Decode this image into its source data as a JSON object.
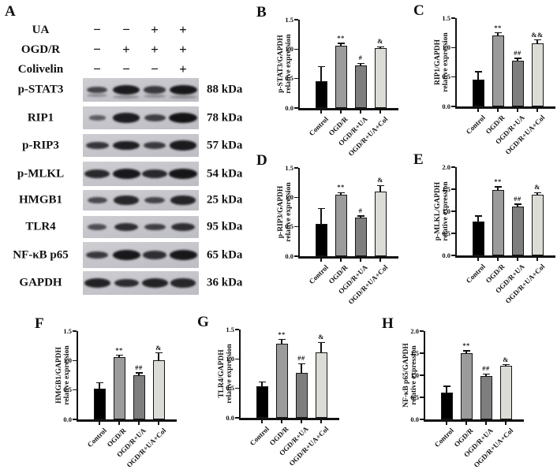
{
  "figure": {
    "bar_colors": [
      "#000000",
      "#9b9b9b",
      "#7e7e7e",
      "#dcdcd7"
    ],
    "groups": [
      "Control",
      "OGD/R",
      "OGD/R+UA",
      "OGD/R+UA+Col"
    ],
    "panel_a": {
      "letter": "A",
      "treatments": [
        {
          "label": "UA",
          "symbols": [
            "−",
            "−",
            "+",
            "+"
          ]
        },
        {
          "label": "OGD/R",
          "symbols": [
            "−",
            "+",
            "+",
            "+"
          ]
        },
        {
          "label": "Colivelin",
          "symbols": [
            "−",
            "−",
            "−",
            "+"
          ]
        }
      ],
      "blot_rows": [
        {
          "protein": "p-STAT3",
          "mw": "88 kDa",
          "band_intensities": [
            0.5,
            0.92,
            0.6,
            0.95
          ],
          "double_band": true
        },
        {
          "protein": "RIP1",
          "mw": "78 kDa",
          "band_intensities": [
            0.25,
            0.9,
            0.55,
            1.0
          ],
          "double_band": false
        },
        {
          "protein": "p-RIP3",
          "mw": "57 kDa",
          "band_intensities": [
            0.65,
            0.88,
            0.6,
            0.92
          ],
          "double_band": false
        },
        {
          "protein": "p-MLKL",
          "mw": "54 kDa",
          "band_intensities": [
            0.78,
            0.95,
            0.78,
            0.97
          ],
          "double_band": false
        },
        {
          "protein": "HMGB1",
          "mw": "25 kDa",
          "band_intensities": [
            0.45,
            0.8,
            0.5,
            0.82
          ],
          "double_band": false
        },
        {
          "protein": "TLR4",
          "mw": "95 kDa",
          "band_intensities": [
            0.4,
            0.72,
            0.55,
            0.72
          ],
          "double_band": false
        },
        {
          "protein": "NF-κB p65",
          "mw": "65 kDa",
          "band_intensities": [
            0.62,
            0.95,
            0.72,
            0.95
          ],
          "double_band": false
        },
        {
          "protein": "GAPDH",
          "mw": "36 kDa",
          "band_intensities": [
            0.85,
            0.75,
            0.85,
            0.8
          ],
          "double_band": false
        }
      ]
    }
  },
  "chart_data": [
    {
      "id": "B",
      "letter": "B",
      "type": "bar",
      "ylabel_line1": "p-STAT3/GAPDH",
      "ylabel_line2": "relative expression",
      "categories": [
        "Control",
        "OGD/R",
        "OGD/R+UA",
        "OGD/R+UA+Col"
      ],
      "values": [
        0.46,
        1.06,
        0.72,
        1.02
      ],
      "errors": [
        0.24,
        0.04,
        0.04,
        0.02
      ],
      "sig": [
        "",
        "**",
        "#",
        "&"
      ],
      "ylim": [
        0,
        1.5
      ],
      "yticks": [
        0,
        0.5,
        1.0,
        1.5
      ]
    },
    {
      "id": "C",
      "letter": "C",
      "type": "bar",
      "ylabel_line1": "RIP1/GAPDH",
      "ylabel_line2": "relative expression",
      "categories": [
        "Control",
        "OGD/R",
        "OGD/R+UA",
        "OGD/R+UA+Col"
      ],
      "values": [
        0.46,
        1.2,
        0.78,
        1.07
      ],
      "errors": [
        0.13,
        0.05,
        0.04,
        0.06
      ],
      "sig": [
        "",
        "**",
        "##",
        "&&"
      ],
      "ylim": [
        0,
        1.5
      ],
      "yticks": [
        0,
        0.5,
        1.0,
        1.5
      ]
    },
    {
      "id": "D",
      "letter": "D",
      "type": "bar",
      "ylabel_line1": "p-RIP3/GAPDH",
      "ylabel_line2": "relative expression",
      "categories": [
        "Control",
        "OGD/R",
        "OGD/R+UA",
        "OGD/R+UA+Col"
      ],
      "values": [
        0.55,
        1.05,
        0.66,
        1.1
      ],
      "errors": [
        0.26,
        0.03,
        0.02,
        0.1
      ],
      "sig": [
        "",
        "**",
        "#",
        "&"
      ],
      "ylim": [
        0,
        1.5
      ],
      "yticks": [
        0,
        0.5,
        1.0,
        1.5
      ]
    },
    {
      "id": "E",
      "letter": "E",
      "type": "bar",
      "ylabel_line1": "p-MLKL/GAPDH",
      "ylabel_line2": "relative expression",
      "categories": [
        "Control",
        "OGD/R",
        "OGD/R+UA",
        "OGD/R+UA+Col"
      ],
      "values": [
        0.76,
        1.48,
        1.1,
        1.37
      ],
      "errors": [
        0.13,
        0.07,
        0.06,
        0.05
      ],
      "sig": [
        "",
        "**",
        "##",
        "&"
      ],
      "ylim": [
        0,
        2.0
      ],
      "yticks": [
        0,
        0.5,
        1.0,
        1.5,
        2.0
      ]
    },
    {
      "id": "F",
      "letter": "F",
      "type": "bar",
      "ylabel_line1": "HMGB1/GAPDH",
      "ylabel_line2": "relative expression",
      "categories": [
        "Control",
        "OGD/R",
        "OGD/R+UA",
        "OGD/R+UA+Col"
      ],
      "values": [
        0.52,
        1.06,
        0.75,
        1.0
      ],
      "errors": [
        0.1,
        0.03,
        0.04,
        0.13
      ],
      "sig": [
        "",
        "**",
        "##",
        "&"
      ],
      "ylim": [
        0,
        1.5
      ],
      "yticks": [
        0,
        0.5,
        1.0,
        1.5
      ]
    },
    {
      "id": "G",
      "letter": "G",
      "type": "bar",
      "ylabel_line1": "TLR4/GAPDH",
      "ylabel_line2": "relative expression",
      "categories": [
        "Control",
        "OGD/R",
        "OGD/R+UA",
        "OGD/R+UA+Col"
      ],
      "values": [
        0.54,
        1.26,
        0.76,
        1.11
      ],
      "errors": [
        0.07,
        0.07,
        0.16,
        0.17
      ],
      "sig": [
        "",
        "**",
        "##",
        "&"
      ],
      "ylim": [
        0,
        1.5
      ],
      "yticks": [
        0,
        0.5,
        1.0,
        1.5
      ]
    },
    {
      "id": "H",
      "letter": "H",
      "type": "bar",
      "ylabel_line1": "NF-κB p65/GAPDH",
      "ylabel_line2": "relative expression",
      "categories": [
        "Control",
        "OGD/R",
        "OGD/R+UA",
        "OGD/R+UA+Col"
      ],
      "values": [
        0.6,
        1.5,
        0.98,
        1.22
      ],
      "errors": [
        0.15,
        0.05,
        0.05,
        0.02
      ],
      "sig": [
        "",
        "**",
        "##",
        "&"
      ],
      "ylim": [
        0,
        2.0
      ],
      "yticks": [
        0,
        0.5,
        1.0,
        1.5,
        2.0
      ]
    }
  ]
}
